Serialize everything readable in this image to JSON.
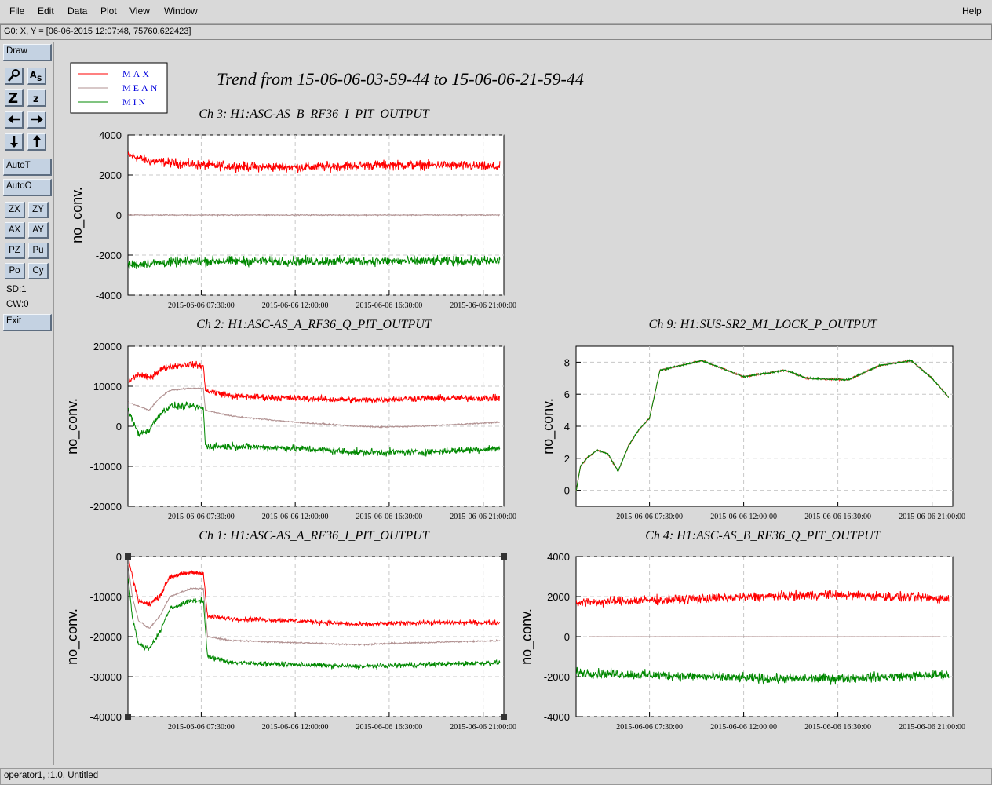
{
  "menu": {
    "file": "File",
    "edit": "Edit",
    "data": "Data",
    "plot": "Plot",
    "view": "View",
    "window": "Window",
    "help": "Help"
  },
  "coord_readout": "G0: X, Y = [06-06-2015 12:07:48, 75760.622423]",
  "toolbar": {
    "draw": "Draw",
    "auto_t": "AutoT",
    "auto_o": "AutoO",
    "zx": "ZX",
    "zy": "ZY",
    "ax": "AX",
    "ay": "AY",
    "pz": "PZ",
    "pu": "Pu",
    "po": "Po",
    "cy": "Cy",
    "sd": "SD:1",
    "cw": "CW:0",
    "exit": "Exit",
    "icons": [
      "zoom-magnifier-icon",
      "auto-scale-icon",
      "zoom-in-icon",
      "zoom-out-icon",
      "pan-left-icon",
      "pan-right-icon",
      "pan-down-icon",
      "pan-up-icon"
    ]
  },
  "status": "operator1, :1.0, Untitled",
  "colors": {
    "max": "#ff0000",
    "mean": "#b09090",
    "min": "#008800",
    "legend_text": "#0000dd"
  },
  "legend": [
    "MAX",
    "MEAN",
    "MIN"
  ],
  "main_title": "Trend from 15-06-06-03-59-44 to 15-06-06-21-59-44",
  "chart_data": [
    {
      "type": "line",
      "title": "Ch 3: H1:ASC-AS_B_RF36_I_PIT_OUTPUT",
      "ylabel": "no_conv.",
      "ylim": [
        -4000,
        4000
      ],
      "yticks": [
        "4000",
        "2000",
        "0",
        "-2000",
        "-4000"
      ],
      "xticks": [
        "2015-06-06 07:30:00",
        "2015-06-06 12:00:00",
        "2015-06-06 16:30:00",
        "2015-06-06 21:00:00"
      ],
      "series": [
        {
          "name": "MAX",
          "x": [
            4,
            5,
            7.5,
            10,
            13,
            16,
            19,
            21.8
          ],
          "y": [
            3000,
            2700,
            2500,
            2400,
            2400,
            2500,
            2500,
            2400
          ]
        },
        {
          "name": "MEAN",
          "x": [
            4,
            5,
            7.5,
            10,
            13,
            16,
            19,
            21.8
          ],
          "y": [
            0,
            0,
            0,
            0,
            0,
            0,
            0,
            0
          ]
        },
        {
          "name": "MIN",
          "x": [
            4,
            5,
            7.5,
            10,
            13,
            16,
            19,
            21.8
          ],
          "y": [
            -2500,
            -2400,
            -2300,
            -2300,
            -2300,
            -2300,
            -2300,
            -2300
          ]
        }
      ]
    },
    {
      "type": "line",
      "title": "Ch 2: H1:ASC-AS_A_RF36_Q_PIT_OUTPUT",
      "ylabel": "no_conv.",
      "ylim": [
        -20000,
        20000
      ],
      "yticks": [
        "20000",
        "10000",
        "0",
        "-10000",
        "-20000"
      ],
      "xticks": [
        "2015-06-06 07:30:00",
        "2015-06-06 12:00:00",
        "2015-06-06 16:30:00",
        "2015-06-06 21:00:00"
      ],
      "series": [
        {
          "name": "MAX",
          "x": [
            4,
            4.5,
            5,
            5.5,
            6,
            7,
            7.6,
            7.7,
            9,
            12,
            15,
            18,
            21.8
          ],
          "y": [
            11000,
            13000,
            12000,
            14000,
            15000,
            15500,
            15000,
            9000,
            7500,
            7000,
            6500,
            7000,
            7000
          ]
        },
        {
          "name": "MEAN",
          "x": [
            4,
            4.5,
            5,
            5.5,
            6,
            7,
            7.6,
            7.7,
            9,
            12,
            15,
            16,
            18,
            21.8
          ],
          "y": [
            6000,
            5000,
            4000,
            7000,
            9000,
            9500,
            9500,
            4000,
            2500,
            1000,
            0,
            -200,
            0,
            1000
          ]
        },
        {
          "name": "MIN",
          "x": [
            4,
            4.5,
            5,
            5.5,
            6,
            7,
            7.6,
            7.7,
            9,
            12,
            15,
            18,
            21.8
          ],
          "y": [
            4000,
            -2000,
            -1000,
            3000,
            5000,
            5000,
            4500,
            -5000,
            -5000,
            -5500,
            -6500,
            -6500,
            -5500
          ]
        }
      ]
    },
    {
      "type": "line",
      "title": "Ch 1: H1:ASC-AS_A_RF36_I_PIT_OUTPUT",
      "ylabel": "no_conv.",
      "ylim": [
        -40000,
        0
      ],
      "yticks": [
        "0",
        "-10000",
        "-20000",
        "-30000",
        "-40000"
      ],
      "xticks": [
        "2015-06-06 07:30:00",
        "2015-06-06 12:00:00",
        "2015-06-06 16:30:00",
        "2015-06-06 21:00:00"
      ],
      "series": [
        {
          "name": "MAX",
          "x": [
            4,
            4.2,
            4.5,
            5,
            5.5,
            6,
            7,
            7.6,
            7.8,
            9,
            12,
            15,
            18,
            21.8
          ],
          "y": [
            0,
            -5000,
            -11000,
            -12000,
            -10000,
            -5000,
            -4000,
            -4000,
            -15000,
            -15500,
            -16000,
            -17000,
            -16500,
            -16500
          ]
        },
        {
          "name": "MEAN",
          "x": [
            4,
            4.2,
            4.5,
            5,
            5.5,
            6,
            7,
            7.6,
            7.8,
            9,
            12,
            15,
            18,
            21.8
          ],
          "y": [
            -2000,
            -10000,
            -16000,
            -18000,
            -15000,
            -10000,
            -8000,
            -8000,
            -20000,
            -21000,
            -21500,
            -22000,
            -21500,
            -21000
          ]
        },
        {
          "name": "MIN",
          "x": [
            4,
            4.2,
            4.5,
            5,
            5.5,
            6,
            7,
            7.6,
            7.8,
            9,
            12,
            15,
            18,
            21.8
          ],
          "y": [
            -5000,
            -15000,
            -22000,
            -23000,
            -19000,
            -13000,
            -11000,
            -11000,
            -25000,
            -26500,
            -27000,
            -27500,
            -27000,
            -26500
          ]
        }
      ]
    },
    {
      "type": "line",
      "title": "Ch 9: H1:SUS-SR2_M1_LOCK_P_OUTPUT",
      "ylabel": "no_conv.",
      "ylim": [
        -1,
        9
      ],
      "yticks": [
        "8",
        "6",
        "4",
        "2",
        "0"
      ],
      "xticks": [
        "2015-06-06 07:30:00",
        "2015-06-06 12:00:00",
        "2015-06-06 16:30:00",
        "2015-06-06 21:00:00"
      ],
      "series": [
        {
          "name": "MAX",
          "x": [
            4,
            4.2,
            4.5,
            5,
            5.5,
            6,
            6.5,
            7,
            7.5,
            8,
            9,
            10,
            12,
            14,
            15,
            17,
            18.5,
            20,
            21,
            21.8
          ],
          "y": [
            0,
            1.5,
            2,
            2.5,
            2.3,
            1.2,
            2.8,
            3.8,
            4.5,
            7.5,
            7.8,
            8.1,
            7.1,
            7.5,
            7.0,
            6.9,
            7.8,
            8.1,
            7.0,
            5.8
          ]
        },
        {
          "name": "MEAN",
          "x": [
            4,
            4.2,
            4.5,
            5,
            5.5,
            6,
            6.5,
            7,
            7.5,
            8,
            9,
            10,
            12,
            14,
            15,
            17,
            18.5,
            20,
            21,
            21.8
          ],
          "y": [
            0,
            1.5,
            2,
            2.5,
            2.3,
            1.2,
            2.8,
            3.8,
            4.5,
            7.5,
            7.8,
            8.1,
            7.1,
            7.5,
            7.0,
            6.9,
            7.8,
            8.1,
            7.0,
            5.8
          ]
        },
        {
          "name": "MIN",
          "x": [
            4,
            4.2,
            4.5,
            5,
            5.5,
            6,
            6.5,
            7,
            7.5,
            8,
            9,
            10,
            12,
            14,
            15,
            17,
            18.5,
            20,
            21,
            21.8
          ],
          "y": [
            0,
            1.5,
            2,
            2.5,
            2.3,
            1.2,
            2.8,
            3.8,
            4.5,
            7.5,
            7.8,
            8.1,
            7.1,
            7.5,
            7.0,
            6.9,
            7.8,
            8.1,
            7.0,
            5.8
          ]
        }
      ]
    },
    {
      "type": "line",
      "title": "Ch 4: H1:ASC-AS_B_RF36_Q_PIT_OUTPUT",
      "ylabel": "no_conv.",
      "ylim": [
        -4000,
        4000
      ],
      "yticks": [
        "4000",
        "2000",
        "0",
        "-2000",
        "-4000"
      ],
      "xticks": [
        "2015-06-06 07:30:00",
        "2015-06-06 12:00:00",
        "2015-06-06 16:30:00",
        "2015-06-06 21:00:00"
      ],
      "series": [
        {
          "name": "MAX",
          "x": [
            4,
            7,
            10,
            13,
            16,
            19,
            21.8
          ],
          "y": [
            1700,
            1800,
            1900,
            2000,
            2100,
            2000,
            1900
          ]
        },
        {
          "name": "MEAN",
          "x": [
            4.6,
            7,
            10,
            13,
            16,
            19,
            21.4
          ],
          "y": [
            0,
            0,
            0,
            0,
            0,
            0,
            0
          ]
        },
        {
          "name": "MIN",
          "x": [
            4,
            7,
            10,
            13,
            16,
            19,
            21.8
          ],
          "y": [
            -1800,
            -1900,
            -2000,
            -2100,
            -2100,
            -2000,
            -1900
          ]
        }
      ]
    }
  ]
}
